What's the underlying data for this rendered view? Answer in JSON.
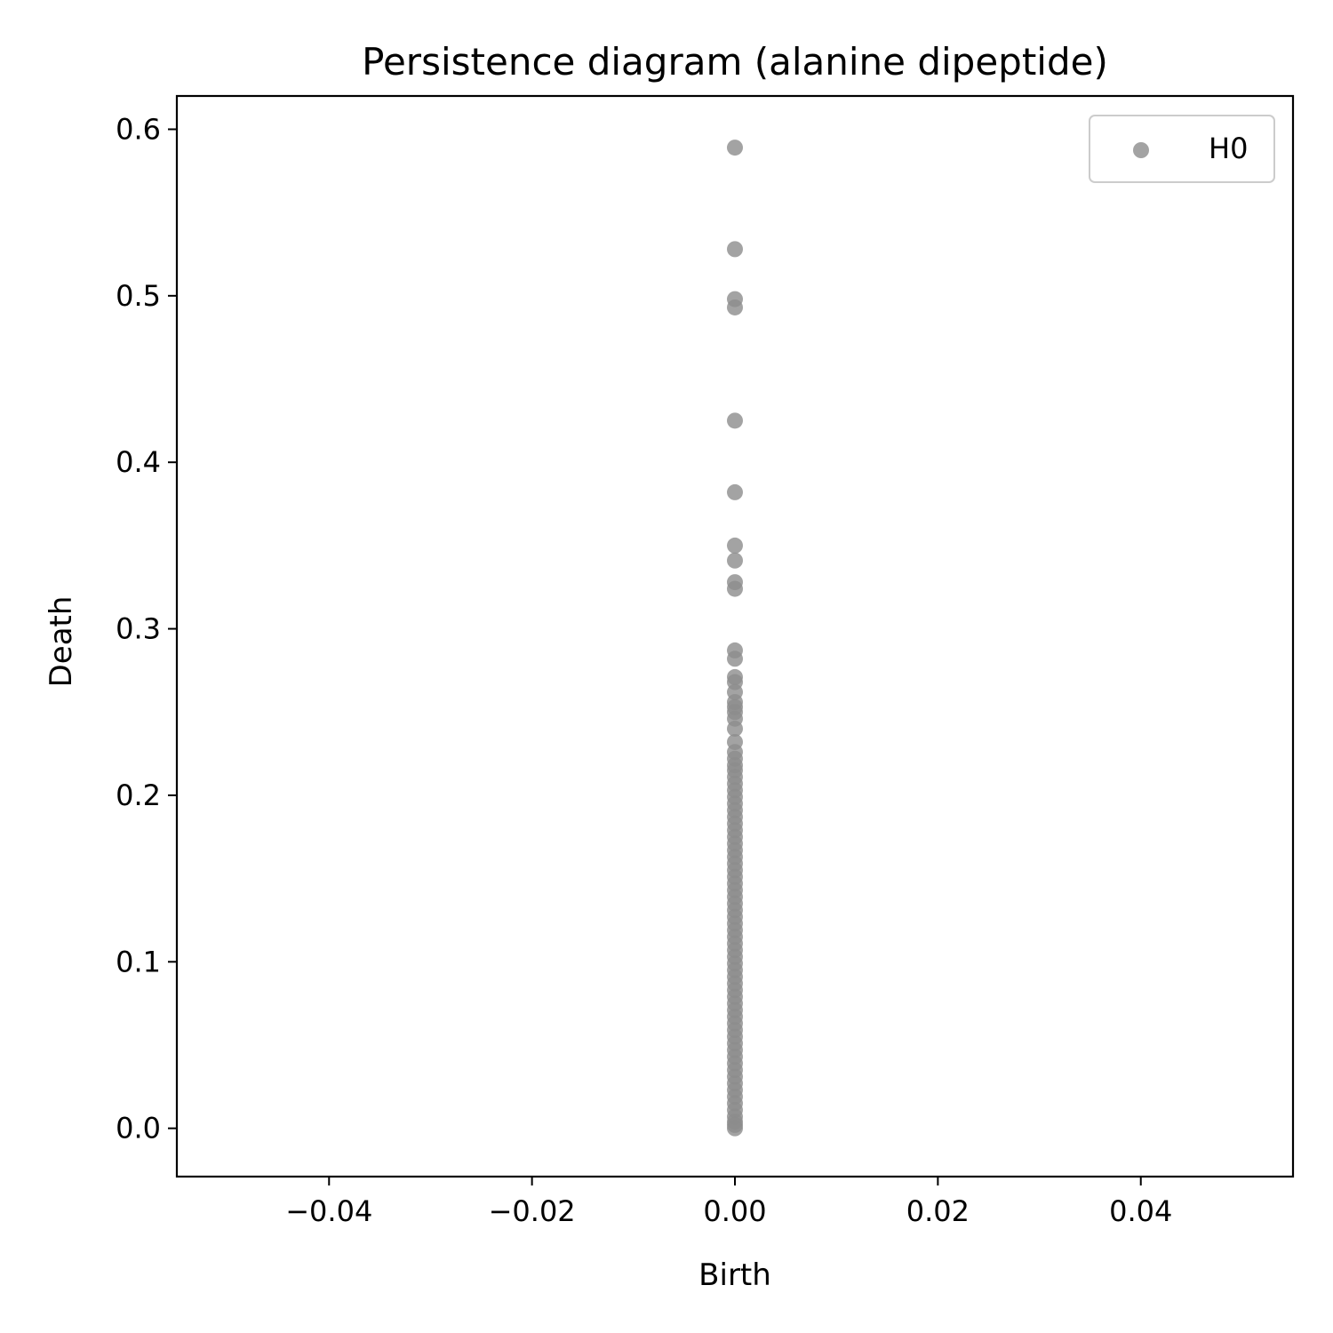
{
  "chart_data": {
    "type": "scatter",
    "title": "Persistence diagram (alanine dipeptide)",
    "xlabel": "Birth",
    "ylabel": "Death",
    "xlim": [
      -0.055,
      0.055
    ],
    "ylim": [
      -0.029,
      0.62
    ],
    "x_ticks": [
      -0.04,
      -0.02,
      0.0,
      0.02,
      0.04
    ],
    "x_tick_labels": [
      "−0.04",
      "−0.02",
      "0.00",
      "0.02",
      "0.04"
    ],
    "y_ticks": [
      0.0,
      0.1,
      0.2,
      0.3,
      0.4,
      0.5,
      0.6
    ],
    "y_tick_labels": [
      "0.0",
      "0.1",
      "0.2",
      "0.3",
      "0.4",
      "0.5",
      "0.6"
    ],
    "grid": false,
    "legend_position": "top-right",
    "series": [
      {
        "name": "H0",
        "color": "#8c8c8c",
        "points": [
          [
            0,
            0.589
          ],
          [
            0,
            0.528
          ],
          [
            0,
            0.498
          ],
          [
            0,
            0.493
          ],
          [
            0,
            0.425
          ],
          [
            0,
            0.382
          ],
          [
            0,
            0.35
          ],
          [
            0,
            0.341
          ],
          [
            0,
            0.328
          ],
          [
            0,
            0.324
          ],
          [
            0,
            0.287
          ],
          [
            0,
            0.282
          ],
          [
            0,
            0.271
          ],
          [
            0,
            0.268
          ],
          [
            0,
            0.262
          ],
          [
            0,
            0.256
          ],
          [
            0,
            0.253
          ],
          [
            0,
            0.25
          ],
          [
            0,
            0.246
          ],
          [
            0,
            0.24
          ],
          [
            0,
            0.232
          ],
          [
            0,
            0.226
          ],
          [
            0,
            0.222
          ],
          [
            0,
            0.218
          ],
          [
            0,
            0.215
          ],
          [
            0,
            0.211
          ],
          [
            0,
            0.207
          ],
          [
            0,
            0.203
          ],
          [
            0,
            0.199
          ],
          [
            0,
            0.195
          ],
          [
            0,
            0.191
          ],
          [
            0,
            0.187
          ],
          [
            0,
            0.183
          ],
          [
            0,
            0.179
          ],
          [
            0,
            0.175
          ],
          [
            0,
            0.171
          ],
          [
            0,
            0.167
          ],
          [
            0,
            0.163
          ],
          [
            0,
            0.159
          ],
          [
            0,
            0.155
          ],
          [
            0,
            0.151
          ],
          [
            0,
            0.147
          ],
          [
            0,
            0.143
          ],
          [
            0,
            0.139
          ],
          [
            0,
            0.135
          ],
          [
            0,
            0.131
          ],
          [
            0,
            0.127
          ],
          [
            0,
            0.123
          ],
          [
            0,
            0.119
          ],
          [
            0,
            0.115
          ],
          [
            0,
            0.111
          ],
          [
            0,
            0.107
          ],
          [
            0,
            0.103
          ],
          [
            0,
            0.099
          ],
          [
            0,
            0.095
          ],
          [
            0,
            0.091
          ],
          [
            0,
            0.087
          ],
          [
            0,
            0.083
          ],
          [
            0,
            0.079
          ],
          [
            0,
            0.075
          ],
          [
            0,
            0.071
          ],
          [
            0,
            0.067
          ],
          [
            0,
            0.063
          ],
          [
            0,
            0.059
          ],
          [
            0,
            0.055
          ],
          [
            0,
            0.051
          ],
          [
            0,
            0.047
          ],
          [
            0,
            0.043
          ],
          [
            0,
            0.039
          ],
          [
            0,
            0.035
          ],
          [
            0,
            0.031
          ],
          [
            0,
            0.027
          ],
          [
            0,
            0.023
          ],
          [
            0,
            0.019
          ],
          [
            0,
            0.015
          ],
          [
            0,
            0.011
          ],
          [
            0,
            0.007
          ],
          [
            0,
            0.004
          ],
          [
            0,
            0.002
          ],
          [
            0,
            0.0
          ]
        ]
      }
    ]
  }
}
